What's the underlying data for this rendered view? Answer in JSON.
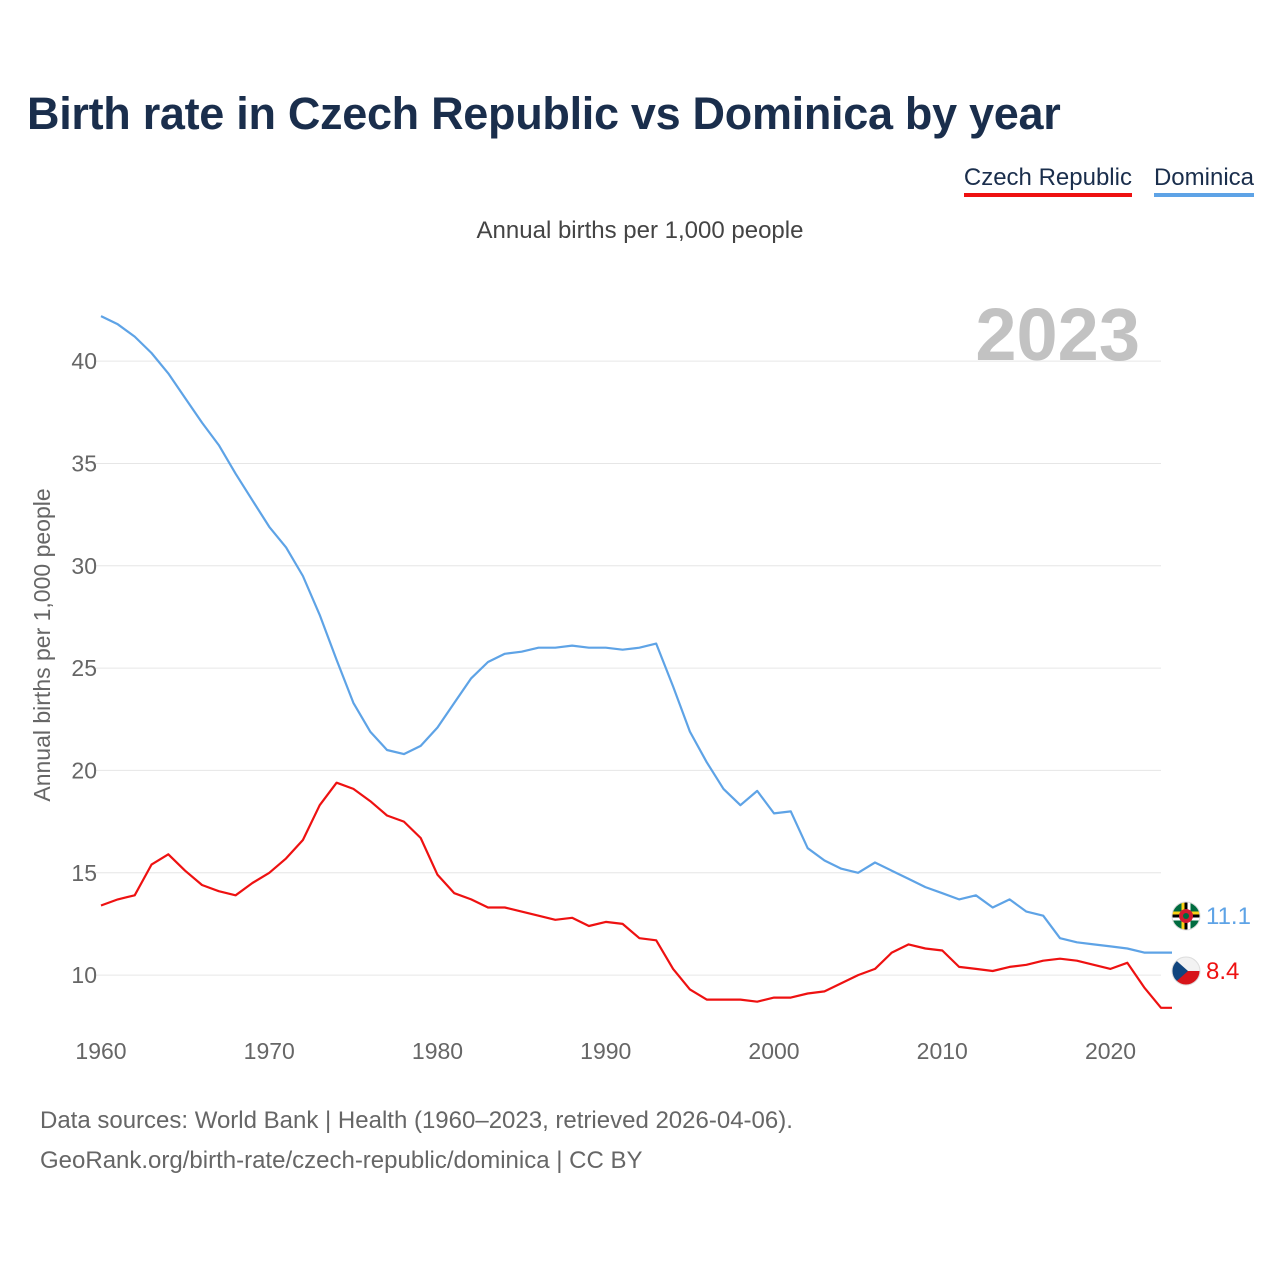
{
  "title": "Birth rate in Czech Republic vs Dominica by year",
  "subtitle": "Annual births per 1,000 people",
  "footer": {
    "line1": "Data sources: World Bank | Health (1960–2023, retrieved 2026-04-06).",
    "line2": "GeoRank.org/birth-rate/czech-republic/dominica | CC BY"
  },
  "chart_data": {
    "type": "line",
    "ylabel": "Annual births per 1,000 people",
    "xlabel": "",
    "year_label": "2023",
    "xlim": [
      1960,
      2023
    ],
    "ylim": [
      8,
      42.5
    ],
    "xticks": [
      1960,
      1970,
      1980,
      1990,
      2000,
      2010,
      2020
    ],
    "yticks": [
      10,
      15,
      20,
      25,
      30,
      35,
      40
    ],
    "grid": true,
    "legend_position": "top-right",
    "series": [
      {
        "name": "Czech Republic",
        "color": "#ee1111",
        "end_label": "8.4",
        "flag_icon": "czech-flag-icon",
        "x": [
          1960,
          1961,
          1962,
          1963,
          1964,
          1965,
          1966,
          1967,
          1968,
          1969,
          1970,
          1971,
          1972,
          1973,
          1974,
          1975,
          1976,
          1977,
          1978,
          1979,
          1980,
          1981,
          1982,
          1983,
          1984,
          1985,
          1986,
          1987,
          1988,
          1989,
          1990,
          1991,
          1992,
          1993,
          1994,
          1995,
          1996,
          1997,
          1998,
          1999,
          2000,
          2001,
          2002,
          2003,
          2004,
          2005,
          2006,
          2007,
          2008,
          2009,
          2010,
          2011,
          2012,
          2013,
          2014,
          2015,
          2016,
          2017,
          2018,
          2019,
          2020,
          2021,
          2022,
          2023
        ],
        "values": [
          13.4,
          13.7,
          13.9,
          15.4,
          15.9,
          15.1,
          14.4,
          14.1,
          13.9,
          14.5,
          15.0,
          15.7,
          16.6,
          18.3,
          19.4,
          19.1,
          18.5,
          17.8,
          17.5,
          16.7,
          14.9,
          14.0,
          13.7,
          13.3,
          13.3,
          13.1,
          12.9,
          12.7,
          12.8,
          12.4,
          12.6,
          12.5,
          11.8,
          11.7,
          10.3,
          9.3,
          8.8,
          8.8,
          8.8,
          8.7,
          8.9,
          8.9,
          9.1,
          9.2,
          9.6,
          10.0,
          10.3,
          11.1,
          11.5,
          11.3,
          11.2,
          10.4,
          10.3,
          10.2,
          10.4,
          10.5,
          10.7,
          10.8,
          10.7,
          10.5,
          10.3,
          10.6,
          9.4,
          8.4
        ]
      },
      {
        "name": "Dominica",
        "color": "#5ea3e6",
        "end_label": "11.1",
        "flag_icon": "dominica-flag-icon",
        "x": [
          1960,
          1961,
          1962,
          1963,
          1964,
          1965,
          1966,
          1967,
          1968,
          1969,
          1970,
          1971,
          1972,
          1973,
          1974,
          1975,
          1976,
          1977,
          1978,
          1979,
          1980,
          1981,
          1982,
          1983,
          1984,
          1985,
          1986,
          1987,
          1988,
          1989,
          1990,
          1991,
          1992,
          1993,
          1994,
          1995,
          1996,
          1997,
          1998,
          1999,
          2000,
          2001,
          2002,
          2003,
          2004,
          2005,
          2006,
          2007,
          2008,
          2009,
          2010,
          2011,
          2012,
          2013,
          2014,
          2015,
          2016,
          2017,
          2018,
          2019,
          2020,
          2021,
          2022,
          2023
        ],
        "values": [
          42.2,
          41.8,
          41.2,
          40.4,
          39.4,
          38.2,
          37.0,
          35.9,
          34.5,
          33.2,
          31.9,
          30.9,
          29.5,
          27.6,
          25.4,
          23.3,
          21.9,
          21.0,
          20.8,
          21.2,
          22.1,
          23.3,
          24.5,
          25.3,
          25.7,
          25.8,
          26.0,
          26.0,
          26.1,
          26.0,
          26.0,
          25.9,
          26.0,
          26.2,
          24.1,
          21.9,
          20.4,
          19.1,
          18.3,
          19.0,
          17.9,
          18.0,
          16.2,
          15.6,
          15.2,
          15.0,
          15.5,
          15.1,
          14.7,
          14.3,
          14.0,
          13.7,
          13.9,
          13.3,
          13.7,
          13.1,
          12.9,
          11.8,
          11.6,
          11.5,
          11.4,
          11.3,
          11.1,
          11.1
        ]
      }
    ]
  }
}
